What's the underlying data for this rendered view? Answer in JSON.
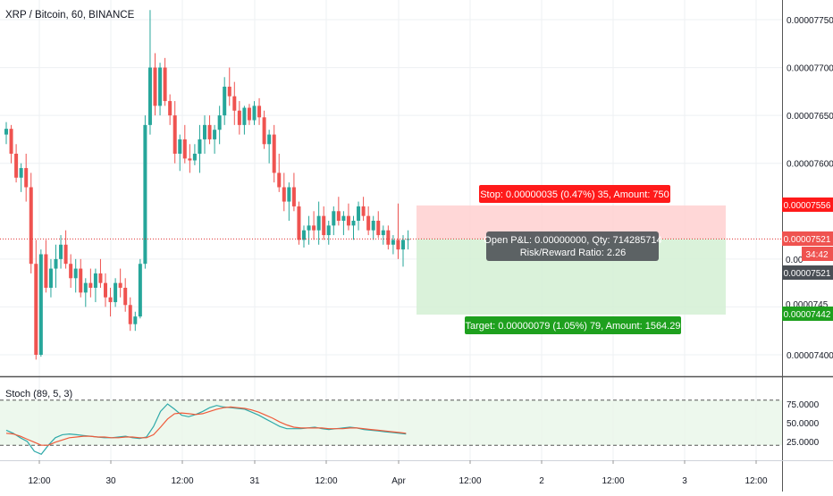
{
  "header": {
    "symbol_label": "XRP / Bitcoin, 60, BINANCE"
  },
  "stoch": {
    "label": "Stoch (89, 5, 3)"
  },
  "colors": {
    "up": "#26a69a",
    "down": "#ef5350",
    "grid": "#eef0f3",
    "stop_zone": "#ffd0d0",
    "target_zone": "#d4f0d4",
    "stop_badge": "#ff1a1a",
    "target_badge": "#1ea01e",
    "k_line": "#2fa9a9",
    "d_line": "#ef5a3a",
    "price_line": "#e03030"
  },
  "position_tool": {
    "stop_label": "Stop: 0.00000035 (0.47%) 35, Amount: 750",
    "target_label": "Target: 0.00000079 (1.05%) 79, Amount: 1564.29",
    "pnl_label": "Open P&L: 0.00000000, Qty: 714285714",
    "rr_label": "Risk/Reward Ratio: 2.26",
    "entry": 7.521e-05,
    "stop": 7.556e-05,
    "target": 7.442e-05
  },
  "price_axis": {
    "stop_tag": "0.00007556",
    "last_tag": "0.00007521",
    "countdown_tag": "34:42",
    "entry_tag": "0.00007521",
    "target_tag": "0.00007442",
    "partial_label_1": "0.00",
    "partial_label_2": "0.0000745"
  },
  "chart_data": {
    "type": "candlestick",
    "title": "XRP / Bitcoin, 60, BINANCE",
    "yticks": [
      "0.00007750",
      "0.00007700",
      "0.00007650",
      "0.00007600",
      "0.00007400"
    ],
    "ylim": [
      7.388e-05,
      7.765e-05
    ],
    "xticks": [
      "12:00",
      "30",
      "12:00",
      "31",
      "12:00",
      "Apr",
      "12:00",
      "2",
      "12:00",
      "3",
      "12:00"
    ],
    "candles_ohlc_x1e8": [
      [
        7630,
        7643,
        7620,
        7636
      ],
      [
        7636,
        7640,
        7600,
        7610
      ],
      [
        7610,
        7620,
        7580,
        7585
      ],
      [
        7585,
        7600,
        7570,
        7595
      ],
      [
        7595,
        7610,
        7560,
        7575
      ],
      [
        7575,
        7590,
        7485,
        7495
      ],
      [
        7495,
        7520,
        7395,
        7400
      ],
      [
        7400,
        7510,
        7398,
        7505
      ],
      [
        7505,
        7520,
        7465,
        7470
      ],
      [
        7470,
        7500,
        7460,
        7490
      ],
      [
        7490,
        7515,
        7470,
        7500
      ],
      [
        7500,
        7525,
        7490,
        7515
      ],
      [
        7515,
        7530,
        7490,
        7495
      ],
      [
        7495,
        7505,
        7470,
        7480
      ],
      [
        7480,
        7500,
        7465,
        7490
      ],
      [
        7490,
        7500,
        7460,
        7465
      ],
      [
        7465,
        7480,
        7450,
        7475
      ],
      [
        7475,
        7490,
        7460,
        7470
      ],
      [
        7470,
        7490,
        7455,
        7485
      ],
      [
        7485,
        7500,
        7470,
        7475
      ],
      [
        7475,
        7485,
        7450,
        7460
      ],
      [
        7460,
        7470,
        7440,
        7455
      ],
      [
        7455,
        7480,
        7450,
        7475
      ],
      [
        7475,
        7490,
        7460,
        7470
      ],
      [
        7470,
        7480,
        7445,
        7452
      ],
      [
        7452,
        7460,
        7425,
        7432
      ],
      [
        7432,
        7445,
        7425,
        7440
      ],
      [
        7440,
        7500,
        7438,
        7495
      ],
      [
        7495,
        7650,
        7490,
        7640
      ],
      [
        7640,
        7760,
        7630,
        7700
      ],
      [
        7700,
        7715,
        7650,
        7660
      ],
      [
        7660,
        7705,
        7650,
        7700
      ],
      [
        7700,
        7710,
        7660,
        7665
      ],
      [
        7665,
        7672,
        7640,
        7650
      ],
      [
        7650,
        7665,
        7600,
        7610
      ],
      [
        7610,
        7630,
        7592,
        7625
      ],
      [
        7625,
        7640,
        7600,
        7605
      ],
      [
        7605,
        7620,
        7590,
        7603
      ],
      [
        7603,
        7620,
        7598,
        7610
      ],
      [
        7610,
        7640,
        7590,
        7625
      ],
      [
        7625,
        7650,
        7610,
        7640
      ],
      [
        7640,
        7650,
        7620,
        7625
      ],
      [
        7625,
        7640,
        7610,
        7635
      ],
      [
        7635,
        7660,
        7620,
        7650
      ],
      [
        7650,
        7690,
        7640,
        7680
      ],
      [
        7680,
        7700,
        7660,
        7670
      ],
      [
        7670,
        7685,
        7640,
        7655
      ],
      [
        7655,
        7665,
        7630,
        7640
      ],
      [
        7640,
        7660,
        7630,
        7658
      ],
      [
        7658,
        7662,
        7640,
        7645
      ],
      [
        7645,
        7665,
        7640,
        7660
      ],
      [
        7660,
        7668,
        7640,
        7648
      ],
      [
        7648,
        7655,
        7615,
        7620
      ],
      [
        7620,
        7635,
        7600,
        7630
      ],
      [
        7630,
        7640,
        7580,
        7590
      ],
      [
        7590,
        7610,
        7570,
        7575
      ],
      [
        7575,
        7590,
        7550,
        7560
      ],
      [
        7560,
        7580,
        7540,
        7575
      ],
      [
        7575,
        7590,
        7550,
        7555
      ],
      [
        7555,
        7560,
        7515,
        7520
      ],
      [
        7520,
        7535,
        7512,
        7530
      ],
      [
        7530,
        7545,
        7515,
        7535
      ],
      [
        7535,
        7550,
        7520,
        7530
      ],
      [
        7530,
        7560,
        7515,
        7545
      ],
      [
        7545,
        7555,
        7520,
        7525
      ],
      [
        7525,
        7540,
        7515,
        7535
      ],
      [
        7535,
        7555,
        7525,
        7550
      ],
      [
        7550,
        7565,
        7535,
        7540
      ],
      [
        7540,
        7550,
        7525,
        7545
      ],
      [
        7545,
        7558,
        7530,
        7535
      ],
      [
        7535,
        7545,
        7520,
        7540
      ],
      [
        7540,
        7560,
        7530,
        7555
      ],
      [
        7555,
        7565,
        7540,
        7545
      ],
      [
        7545,
        7555,
        7525,
        7530
      ],
      [
        7530,
        7545,
        7520,
        7540
      ],
      [
        7540,
        7550,
        7522,
        7525
      ],
      [
        7525,
        7535,
        7515,
        7530
      ],
      [
        7530,
        7535,
        7510,
        7515
      ],
      [
        7515,
        7525,
        7505,
        7520
      ],
      [
        7520,
        7558,
        7500,
        7510
      ],
      [
        7510,
        7525,
        7492,
        7520
      ],
      [
        7520,
        7530,
        7510,
        7521
      ]
    ],
    "stoch_k": [
      40,
      36,
      30,
      25,
      12,
      8,
      20,
      30,
      34,
      35,
      34,
      33,
      32,
      31,
      30,
      30,
      31,
      32,
      30,
      29,
      31,
      45,
      65,
      75,
      68,
      60,
      58,
      61,
      65,
      70,
      73,
      71,
      70,
      69,
      68,
      64,
      60,
      55,
      50,
      45,
      42,
      42,
      42,
      43,
      44,
      42,
      41,
      42,
      43,
      44,
      43,
      41,
      40,
      39,
      38,
      37,
      36,
      35
    ],
    "stoch_d": [
      36,
      35,
      32,
      28,
      24,
      20,
      20,
      24,
      27,
      30,
      31,
      32,
      32,
      31,
      31,
      30,
      30,
      31,
      31,
      30,
      30,
      34,
      44,
      55,
      62,
      63,
      62,
      61,
      62,
      65,
      68,
      70,
      71,
      70,
      69,
      67,
      64,
      60,
      56,
      51,
      47,
      44,
      43,
      43,
      43,
      43,
      42,
      42,
      42,
      43,
      43,
      42,
      41,
      40,
      39,
      38,
      37,
      36
    ],
    "stoch_ticks": [
      "75.0000",
      "50.0000",
      "25.0000"
    ],
    "stoch_ylim": [
      0,
      100
    ]
  }
}
